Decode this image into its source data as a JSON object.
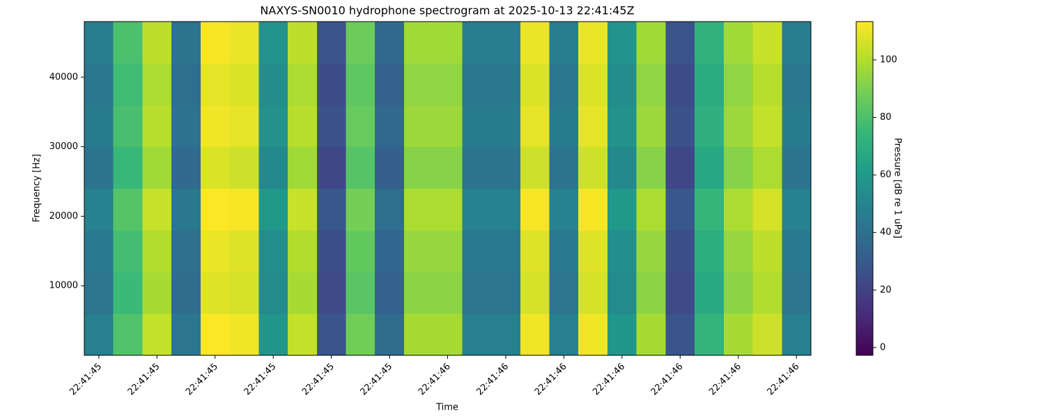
{
  "chart_data": {
    "type": "heatmap",
    "title": "NAXYS-SN0010 hydrophone spectrogram at 2025-10-13 22:41:45Z",
    "xlabel": "Time",
    "ylabel": "Frequency [Hz]",
    "colorbar_label": "Pressure [dB re 1 uPa]",
    "colormap": "viridis",
    "x": [
      45.4,
      45.45,
      45.5,
      45.55,
      45.6,
      45.65,
      45.7,
      45.75,
      45.8,
      45.85,
      45.9,
      45.95,
      46.0,
      46.05,
      46.1,
      46.15,
      46.2,
      46.25,
      46.3,
      46.35,
      46.4,
      46.45,
      46.5,
      46.55,
      46.6
    ],
    "y": [
      3000,
      9000,
      15000,
      21000,
      27000,
      33000,
      39000,
      45000
    ],
    "z": [
      [
        48,
        81,
        103,
        43,
        113,
        111,
        58,
        103,
        28,
        88,
        38,
        98,
        98,
        48,
        48,
        111,
        48,
        111,
        58,
        98,
        28,
        73,
        98,
        105,
        48
      ],
      [
        43,
        76,
        98,
        38,
        108,
        106,
        53,
        98,
        23,
        83,
        33,
        93,
        93,
        43,
        43,
        106,
        43,
        106,
        53,
        93,
        23,
        68,
        93,
        100,
        43
      ],
      [
        45,
        78,
        100,
        40,
        110,
        108,
        55,
        100,
        25,
        85,
        35,
        95,
        95,
        45,
        45,
        108,
        45,
        108,
        55,
        95,
        25,
        70,
        95,
        102,
        45
      ],
      [
        49,
        82,
        104,
        44,
        113,
        112,
        59,
        104,
        29,
        89,
        39,
        99,
        99,
        49,
        49,
        112,
        49,
        112,
        59,
        99,
        29,
        74,
        99,
        106,
        49
      ],
      [
        42,
        75,
        97,
        37,
        107,
        105,
        52,
        97,
        22,
        82,
        32,
        92,
        92,
        42,
        42,
        105,
        42,
        105,
        52,
        92,
        22,
        67,
        92,
        99,
        42
      ],
      [
        46,
        79,
        101,
        41,
        111,
        109,
        56,
        101,
        26,
        86,
        36,
        96,
        96,
        46,
        46,
        109,
        46,
        109,
        56,
        96,
        26,
        71,
        96,
        103,
        46
      ],
      [
        44,
        77,
        99,
        39,
        109,
        107,
        54,
        99,
        24,
        84,
        34,
        94,
        94,
        44,
        44,
        107,
        44,
        107,
        54,
        94,
        24,
        69,
        94,
        101,
        44
      ],
      [
        47,
        80,
        102,
        42,
        112,
        110,
        57,
        102,
        27,
        87,
        37,
        97,
        97,
        47,
        47,
        110,
        47,
        110,
        57,
        97,
        27,
        72,
        97,
        104,
        47
      ]
    ],
    "xlim": [
      45.375,
      46.625
    ],
    "xticks": [
      {
        "value": 45.4,
        "label": "22:41:45"
      },
      {
        "value": 45.5,
        "label": "22:41:45"
      },
      {
        "value": 45.6,
        "label": "22:41:45"
      },
      {
        "value": 45.7,
        "label": "22:41:45"
      },
      {
        "value": 45.8,
        "label": "22:41:45"
      },
      {
        "value": 45.9,
        "label": "22:41:45"
      },
      {
        "value": 46.0,
        "label": "22:41:46"
      },
      {
        "value": 46.1,
        "label": "22:41:46"
      },
      {
        "value": 46.2,
        "label": "22:41:46"
      },
      {
        "value": 46.3,
        "label": "22:41:46"
      },
      {
        "value": 46.4,
        "label": "22:41:46"
      },
      {
        "value": 46.5,
        "label": "22:41:46"
      },
      {
        "value": 46.6,
        "label": "22:41:46"
      }
    ],
    "ylim": [
      0,
      48000
    ],
    "yticks": [
      10000,
      20000,
      30000,
      40000
    ],
    "clim": [
      -2.7,
      113.3
    ],
    "cticks": [
      0,
      20,
      40,
      60,
      80,
      100
    ]
  }
}
